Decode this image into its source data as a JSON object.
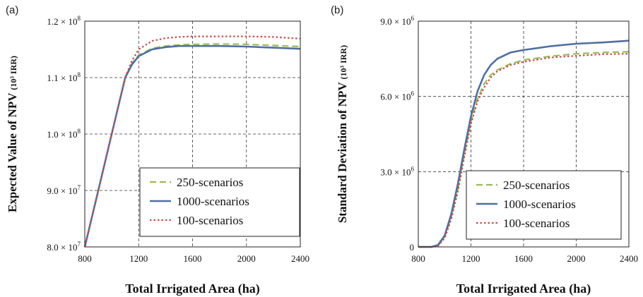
{
  "chart_data": [
    {
      "panel_label": "(a)",
      "type": "line",
      "xlabel": "Total Irrigated Area (ha)",
      "ylabel": "Expected Value of NPV",
      "ylabel_unit": "(10³ IRR)",
      "xlim": [
        800,
        2400
      ],
      "ylim": [
        80000000,
        120000000
      ],
      "x_ticks": [
        800,
        1200,
        1600,
        2000,
        2400
      ],
      "x_tick_labels": [
        "800",
        "1200",
        "1600",
        "2000",
        "2400"
      ],
      "y_ticks": [
        80000000,
        90000000,
        100000000,
        110000000,
        120000000
      ],
      "y_tick_labels": [
        {
          "mant": "8.0 × 10",
          "exp": "7"
        },
        {
          "mant": "9.0 × 10",
          "exp": "7"
        },
        {
          "mant": "1.0 × 10",
          "exp": "8"
        },
        {
          "mant": "1.1 × 10",
          "exp": "8"
        },
        {
          "mant": "1.2 × 10",
          "exp": "8"
        }
      ],
      "grid": true,
      "legend_position": "bottom-right",
      "series": [
        {
          "name": "250-scenarios",
          "color": "#9bbb59",
          "dash": "dashed",
          "x": [
            800,
            900,
            1000,
            1100,
            1150,
            1200,
            1300,
            1400,
            1500,
            1600,
            1800,
            2000,
            2200,
            2400
          ],
          "y": [
            80000000,
            90000000,
            100000000,
            110000000,
            112500000,
            114000000,
            115200000,
            115600000,
            115800000,
            115900000,
            115950000,
            115900000,
            115700000,
            115500000
          ]
        },
        {
          "name": "1000-scenarios",
          "color": "#4f6fa0",
          "dash": "solid",
          "x": [
            800,
            900,
            1000,
            1100,
            1150,
            1200,
            1300,
            1400,
            1500,
            1600,
            1800,
            2000,
            2200,
            2400
          ],
          "y": [
            80000000,
            90000000,
            100000000,
            110000000,
            112300000,
            113800000,
            115000000,
            115400000,
            115600000,
            115600000,
            115600000,
            115500000,
            115300000,
            115100000
          ]
        },
        {
          "name": "100-scenarios",
          "color": "#c0504d",
          "dash": "dotted",
          "x": [
            800,
            900,
            1000,
            1100,
            1150,
            1200,
            1300,
            1400,
            1500,
            1600,
            1800,
            2000,
            2200,
            2400
          ],
          "y": [
            80000000,
            90000000,
            100000000,
            110000000,
            113000000,
            115000000,
            116500000,
            117000000,
            117200000,
            117300000,
            117300000,
            117300000,
            117200000,
            116900000
          ]
        }
      ]
    },
    {
      "panel_label": "(b)",
      "type": "line",
      "xlabel": "Total Irrigated Area (ha)",
      "ylabel": "Standard Deviation of NPV",
      "ylabel_unit": "(10³ IRR)",
      "xlim": [
        800,
        2400
      ],
      "ylim": [
        0,
        9000000
      ],
      "x_ticks": [
        800,
        1200,
        1600,
        2000,
        2400
      ],
      "x_tick_labels": [
        "800",
        "1200",
        "1600",
        "2000",
        "2400"
      ],
      "y_ticks": [
        0,
        3000000,
        6000000,
        9000000
      ],
      "y_tick_labels": [
        {
          "mant": "0",
          "exp": ""
        },
        {
          "mant": "3.0 × 10",
          "exp": "6"
        },
        {
          "mant": "6.0 × 10",
          "exp": "6"
        },
        {
          "mant": "9.0 × 10",
          "exp": "6"
        }
      ],
      "grid": true,
      "legend_position": "bottom-right",
      "series": [
        {
          "name": "250-scenarios",
          "color": "#9bbb59",
          "dash": "dashed",
          "x": [
            800,
            900,
            950,
            1000,
            1050,
            1100,
            1150,
            1200,
            1250,
            1300,
            1350,
            1400,
            1500,
            1600,
            1800,
            2000,
            2200,
            2400
          ],
          "y": [
            0,
            0,
            50000,
            400000,
            1200000,
            2300000,
            3700000,
            5000000,
            5900000,
            6500000,
            6850000,
            7050000,
            7300000,
            7450000,
            7600000,
            7700000,
            7750000,
            7780000
          ]
        },
        {
          "name": "1000-scenarios",
          "color": "#4f6fa0",
          "dash": "solid",
          "x": [
            800,
            900,
            950,
            1000,
            1050,
            1100,
            1150,
            1200,
            1250,
            1300,
            1350,
            1400,
            1500,
            1600,
            1800,
            2000,
            2200,
            2400
          ],
          "y": [
            0,
            0,
            80000,
            450000,
            1300000,
            2500000,
            3900000,
            5200000,
            6200000,
            6850000,
            7250000,
            7500000,
            7750000,
            7850000,
            8000000,
            8100000,
            8150000,
            8220000
          ]
        },
        {
          "name": "100-scenarios",
          "color": "#c0504d",
          "dash": "dotted",
          "x": [
            800,
            900,
            950,
            1000,
            1050,
            1100,
            1150,
            1200,
            1250,
            1300,
            1350,
            1400,
            1500,
            1600,
            1800,
            2000,
            2200,
            2400
          ],
          "y": [
            0,
            0,
            40000,
            350000,
            1100000,
            2200000,
            3600000,
            4900000,
            5800000,
            6350000,
            6750000,
            7000000,
            7250000,
            7380000,
            7550000,
            7620000,
            7680000,
            7700000
          ]
        }
      ]
    }
  ]
}
